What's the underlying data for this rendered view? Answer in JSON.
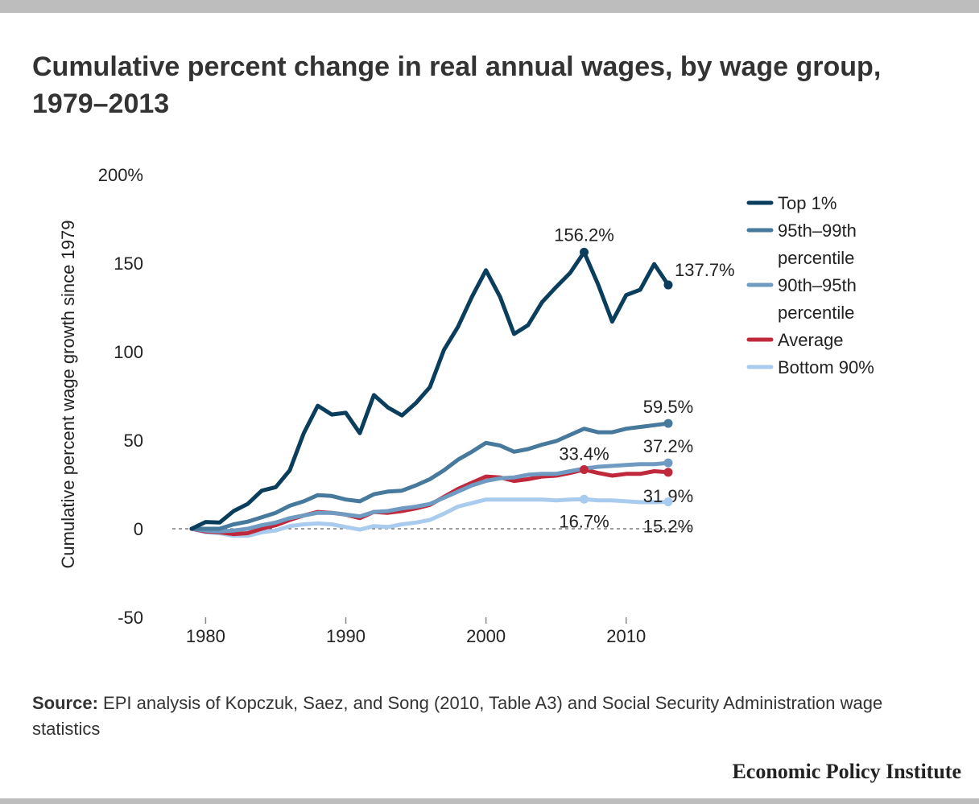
{
  "header": {
    "title": "Cumulative percent change in real annual wages, by wage group, 1979–2013"
  },
  "footer": {
    "source_label": "Source:",
    "source_text": "EPI analysis of Kopczuk, Saez, and Song (2010, Table A3) and Social Security Administration wage statistics",
    "brand": "Economic Policy Institute"
  },
  "chart_data": {
    "type": "line",
    "title": "Cumulative percent change in real annual wages, by wage group, 1979–2013",
    "xlabel": "",
    "ylabel": "Cumulative percent wage growth since 1979",
    "xlim": [
      1979,
      2013
    ],
    "ylim": [
      -50,
      200
    ],
    "y_ticks": [
      -50,
      0,
      50,
      100,
      150,
      200
    ],
    "y_tick_labels": [
      "-50",
      "0",
      "50",
      "100",
      "150",
      "200%"
    ],
    "x_ticks": [
      1980,
      1990,
      2000,
      2010
    ],
    "x_tick_labels": [
      "1980",
      "1990",
      "2000",
      "2010"
    ],
    "zero_line": "dashed",
    "grid": false,
    "legend_position": "top-right",
    "x": [
      1979,
      1980,
      1981,
      1982,
      1983,
      1984,
      1985,
      1986,
      1987,
      1988,
      1989,
      1990,
      1991,
      1992,
      1993,
      1994,
      1995,
      1996,
      1997,
      1998,
      1999,
      2000,
      2001,
      2002,
      2003,
      2004,
      2005,
      2006,
      2007,
      2008,
      2009,
      2010,
      2011,
      2012,
      2013
    ],
    "series": [
      {
        "name": "Top 1%",
        "color": "#0b3d5c",
        "values": [
          0,
          3.8,
          3.5,
          10,
          14,
          21.5,
          23.5,
          33,
          54,
          69.5,
          64.5,
          65.5,
          54,
          75.5,
          68.5,
          64,
          71,
          80,
          101,
          114,
          131,
          146,
          131,
          110,
          115,
          128,
          136.5,
          144.5,
          156.2,
          138,
          117,
          132,
          135,
          149.5,
          137.7
        ]
      },
      {
        "name": "95th–99th percentile",
        "color": "#46799c",
        "values": [
          0,
          0,
          0,
          2.5,
          4,
          6.5,
          9,
          13,
          15.5,
          19,
          18.5,
          16.5,
          15.5,
          19.5,
          21,
          21.5,
          24.5,
          28,
          33,
          39,
          43.5,
          48.5,
          47,
          43.5,
          45,
          47.5,
          49.5,
          53,
          56.5,
          54.5,
          54.5,
          56.5,
          57.5,
          58.5,
          59.5
        ]
      },
      {
        "name": "90th–95th percentile",
        "color": "#6f9bc2",
        "values": [
          0,
          -1,
          -1.5,
          -1,
          0,
          2,
          3.5,
          6,
          7.5,
          9,
          9,
          8,
          7,
          9.5,
          10,
          11.5,
          12.5,
          14,
          17.5,
          21,
          24.5,
          27,
          28.5,
          29,
          30.5,
          31,
          31,
          32.5,
          34,
          35,
          35.5,
          36,
          36.5,
          36.5,
          37.2
        ]
      },
      {
        "name": "Average",
        "color": "#c0283b",
        "values": [
          0,
          -1.5,
          -2,
          -3,
          -2.5,
          0,
          2,
          5,
          7.5,
          9.5,
          9,
          8,
          6,
          9.5,
          9,
          10,
          11.5,
          13.5,
          18,
          22.5,
          26,
          29.5,
          29,
          27,
          28,
          29.5,
          30,
          31.5,
          33.4,
          31.5,
          30,
          31,
          31,
          32.5,
          31.9
        ]
      },
      {
        "name": "Bottom 90%",
        "color": "#a9cbed",
        "values": [
          0,
          -2,
          -2.5,
          -4,
          -4,
          -2,
          -1,
          1.5,
          2.5,
          3,
          2.5,
          1,
          -0.5,
          1.5,
          1,
          2.5,
          3.5,
          5,
          8.5,
          12.5,
          14.5,
          16.5,
          16.5,
          16.5,
          16.5,
          16.5,
          16,
          16.5,
          16.7,
          16,
          16,
          15.5,
          15,
          15,
          15.2
        ]
      }
    ],
    "annotations": [
      {
        "series": "Top 1%",
        "x": 2007,
        "y": 156.2,
        "text": "156.2%"
      },
      {
        "series": "Top 1%",
        "x": 2013,
        "y": 137.7,
        "text": "137.7%"
      },
      {
        "series": "95th–99th percentile",
        "x": 2013,
        "y": 59.5,
        "text": "59.5%"
      },
      {
        "series": "90th–95th percentile",
        "x": 2013,
        "y": 37.2,
        "text": "37.2%"
      },
      {
        "series": "Average",
        "x": 2007,
        "y": 33.4,
        "text": "33.4%"
      },
      {
        "series": "Average",
        "x": 2013,
        "y": 31.9,
        "text": "31.9%"
      },
      {
        "series": "Bottom 90%",
        "x": 2007,
        "y": 16.7,
        "text": "16.7%"
      },
      {
        "series": "Bottom 90%",
        "x": 2013,
        "y": 15.2,
        "text": "15.2%"
      }
    ],
    "legend": [
      {
        "lines": [
          "Top 1%"
        ],
        "color": "#0b3d5c"
      },
      {
        "lines": [
          "95th–99th",
          "percentile"
        ],
        "color": "#46799c"
      },
      {
        "lines": [
          "90th–95th",
          "percentile"
        ],
        "color": "#6f9bc2"
      },
      {
        "lines": [
          "Average"
        ],
        "color": "#c0283b"
      },
      {
        "lines": [
          "Bottom 90%"
        ],
        "color": "#a9cbed"
      }
    ]
  }
}
